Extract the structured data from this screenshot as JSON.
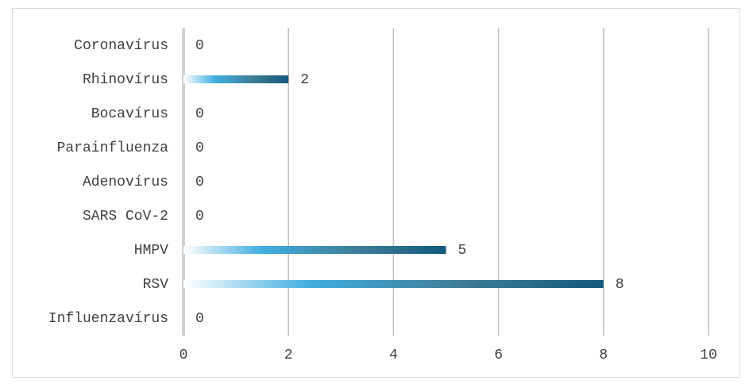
{
  "chart_data": {
    "type": "barh",
    "categories": [
      "Coronavírus",
      "Rhinovírus",
      "Bocavírus",
      "Parainfluenza",
      "Adenovírus",
      "SARS CoV-2",
      "HMPV",
      "RSV",
      "Influenzavírus"
    ],
    "values": [
      0,
      2,
      0,
      0,
      0,
      0,
      5,
      8,
      0
    ],
    "color": "#145a7c",
    "xlim": [
      0,
      10
    ],
    "xticks": [
      0,
      2,
      4,
      6,
      8,
      10
    ],
    "grid": true
  }
}
